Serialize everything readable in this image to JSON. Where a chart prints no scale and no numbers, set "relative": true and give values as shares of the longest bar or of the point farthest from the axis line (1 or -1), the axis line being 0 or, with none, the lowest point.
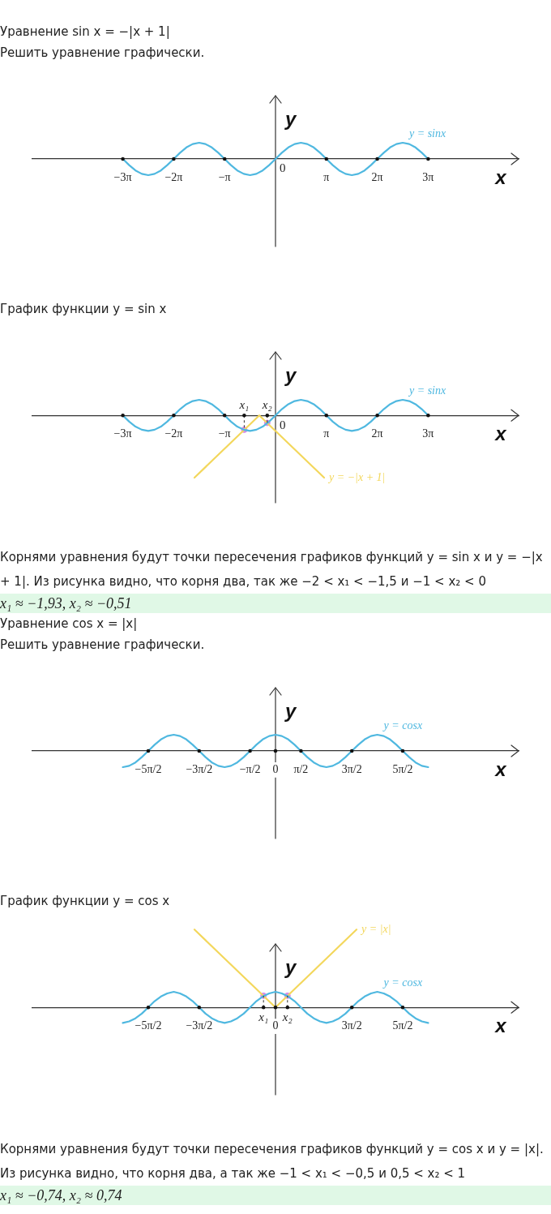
{
  "chart_data": [
    {
      "type": "line",
      "title": "Уравнение sin x = −|x + 1|",
      "subtitle": "Решить уравнение графически.",
      "xlabel": "x",
      "ylabel": "y",
      "relative": true,
      "xlim": [
        -15,
        15
      ],
      "xticks": [
        {
          "value": -9.42,
          "label": "−3π"
        },
        {
          "value": -6.28,
          "label": "−2π"
        },
        {
          "value": -3.14,
          "label": "−π"
        },
        {
          "value": 3.14,
          "label": "π"
        },
        {
          "value": 6.28,
          "label": "2π"
        },
        {
          "value": 9.42,
          "label": "3π"
        }
      ],
      "series": [
        {
          "name": "y = sinx",
          "color": "#4fb8e0",
          "x": [
            -9.42,
            -9.03,
            -8.64,
            -8.25,
            -7.85,
            -7.46,
            -7.07,
            -6.68,
            -6.28,
            -5.89,
            -5.5,
            -5.11,
            -4.71,
            -4.32,
            -3.93,
            -3.53,
            -3.14,
            -2.75,
            -2.36,
            -1.96,
            -1.57,
            -1.18,
            -0.79,
            -0.39,
            0,
            0.39,
            0.79,
            1.18,
            1.57,
            1.96,
            2.36,
            2.75,
            3.14,
            3.53,
            3.93,
            4.32,
            4.71,
            5.11,
            5.5,
            5.89,
            6.28,
            6.68,
            7.07,
            7.46,
            7.85,
            8.25,
            8.64,
            9.03,
            9.42
          ],
          "values": [
            0,
            -0.38,
            -0.71,
            -0.92,
            -1,
            -0.92,
            -0.71,
            -0.38,
            0,
            0.38,
            0.71,
            0.92,
            1,
            0.92,
            0.71,
            0.38,
            0,
            -0.38,
            -0.71,
            -0.92,
            -1,
            -0.92,
            -0.71,
            -0.38,
            0,
            0.38,
            0.71,
            0.92,
            1,
            0.92,
            0.71,
            0.38,
            0,
            -0.38,
            -0.71,
            -0.92,
            -1,
            -0.92,
            -0.71,
            -0.38,
            0,
            0.38,
            0.71,
            0.92,
            1,
            0.92,
            0.71,
            0.38,
            0
          ]
        }
      ],
      "annotations": [
        {
          "text": "0",
          "x": 0,
          "y": 0
        }
      ]
    },
    {
      "type": "line",
      "title": "График функции y = sin x",
      "xlabel": "x",
      "ylabel": "y",
      "relative": true,
      "xlim": [
        -15,
        15
      ],
      "xticks": [
        {
          "value": -9.42,
          "label": "−3π"
        },
        {
          "value": -6.28,
          "label": "−2π"
        },
        {
          "value": -3.14,
          "label": "−π"
        },
        {
          "value": 3.14,
          "label": "π"
        },
        {
          "value": 6.28,
          "label": "2π"
        },
        {
          "value": 9.42,
          "label": "3π"
        }
      ],
      "series": [
        {
          "name": "y = sinx",
          "color": "#4fb8e0",
          "x": [
            -9.42,
            -9.03,
            -8.64,
            -8.25,
            -7.85,
            -7.46,
            -7.07,
            -6.68,
            -6.28,
            -5.89,
            -5.5,
            -5.11,
            -4.71,
            -4.32,
            -3.93,
            -3.53,
            -3.14,
            -2.75,
            -2.36,
            -1.96,
            -1.57,
            -1.18,
            -0.79,
            -0.39,
            0,
            0.39,
            0.79,
            1.18,
            1.57,
            1.96,
            2.36,
            2.75,
            3.14,
            3.53,
            3.93,
            4.32,
            4.71,
            5.11,
            5.5,
            5.89,
            6.28,
            6.68,
            7.07,
            7.46,
            7.85,
            8.25,
            8.64,
            9.03,
            9.42
          ],
          "values": [
            0,
            -0.1,
            -0.18,
            -0.23,
            -0.25,
            -0.23,
            -0.18,
            -0.1,
            0,
            0.1,
            0.18,
            0.23,
            0.25,
            0.23,
            0.18,
            0.1,
            0,
            -0.1,
            -0.18,
            -0.23,
            -0.25,
            -0.23,
            -0.18,
            -0.1,
            0,
            0.1,
            0.18,
            0.23,
            0.25,
            0.23,
            0.18,
            0.1,
            0,
            -0.1,
            -0.18,
            -0.23,
            -0.25,
            -0.23,
            -0.18,
            -0.1,
            0,
            0.1,
            0.18,
            0.23,
            0.25,
            0.23,
            0.18,
            0.1,
            0
          ]
        },
        {
          "name": "y = −|x + 1|",
          "color": "#f3d75c",
          "x": [
            -5,
            -1,
            3
          ],
          "values": [
            -1,
            0,
            -1
          ]
        },
        {
          "type": "scatter",
          "color": "#d98ae8",
          "x": [
            -1.93,
            -0.51
          ],
          "values": [
            -0.23,
            -0.12
          ]
        }
      ],
      "annotations": [
        {
          "text": "0",
          "x": 0,
          "y": 0
        },
        {
          "text": "x₁",
          "x": -1.93,
          "y": -0.23
        },
        {
          "text": "x₂",
          "x": -0.51,
          "y": -0.12
        },
        "Корнями уравнения будут точки пересечения графиков функций y = sin x и y = −|x + 1|. Из рисунка видно, что корня два, так же −2 < x₁ < −1,5 и −1 < x₂ < 0",
        "x₁ ≈ −1,93, x₂ ≈ −0,51"
      ]
    },
    {
      "type": "line",
      "title": "Уравнение cos x = |x|",
      "subtitle": "Решить уравнение графически.",
      "xlabel": "x",
      "ylabel": "y",
      "relative": true,
      "xlim": [
        -15,
        15
      ],
      "xticks": [
        {
          "value": -7.85,
          "label": "−5π/2"
        },
        {
          "value": -4.71,
          "label": "−3π/2"
        },
        {
          "value": -1.57,
          "label": "−π/2"
        },
        0,
        {
          "value": 1.57,
          "label": "π/2"
        },
        {
          "value": 4.71,
          "label": "3π/2"
        },
        {
          "value": 7.85,
          "label": "5π/2"
        }
      ],
      "series": [
        {
          "name": "y = cosx",
          "color": "#4fb8e0",
          "x": [
            -9.42,
            -9.03,
            -8.64,
            -8.25,
            -7.85,
            -7.46,
            -7.07,
            -6.68,
            -6.28,
            -5.89,
            -5.5,
            -5.11,
            -4.71,
            -4.32,
            -3.93,
            -3.53,
            -3.14,
            -2.75,
            -2.36,
            -1.96,
            -1.57,
            -1.18,
            -0.79,
            -0.39,
            0,
            0.39,
            0.79,
            1.18,
            1.57,
            1.96,
            2.36,
            2.75,
            3.14,
            3.53,
            3.93,
            4.32,
            4.71,
            5.11,
            5.5,
            5.89,
            6.28,
            6.68,
            7.07,
            7.46,
            7.85,
            8.25,
            8.64,
            9.03,
            9.42
          ],
          "values": [
            -1,
            -0.92,
            -0.71,
            -0.38,
            0,
            0.38,
            0.71,
            0.92,
            1,
            0.92,
            0.71,
            0.38,
            0,
            -0.38,
            -0.71,
            -0.92,
            -1,
            -0.92,
            -0.71,
            -0.38,
            0,
            0.38,
            0.71,
            0.92,
            1,
            0.92,
            0.71,
            0.38,
            0,
            -0.38,
            -0.71,
            -0.92,
            -1,
            -0.92,
            -0.71,
            -0.38,
            0,
            0.38,
            0.71,
            0.92,
            1,
            0.92,
            0.71,
            0.38,
            0,
            -0.38,
            -0.71,
            -0.92,
            -1
          ]
        }
      ]
    },
    {
      "type": "line",
      "title": "График функции y = cos x",
      "xlabel": "x",
      "ylabel": "y",
      "relative": true,
      "xlim": [
        -15,
        15
      ],
      "xticks": [
        {
          "value": -7.85,
          "label": "−5π/2"
        },
        {
          "value": -4.71,
          "label": "−3π/2"
        },
        0,
        {
          "value": 4.71,
          "label": "3π/2"
        },
        {
          "value": 7.85,
          "label": "5π/2"
        }
      ],
      "series": [
        {
          "name": "y = cosx",
          "color": "#4fb8e0",
          "x": [
            -9.42,
            -9.03,
            -8.64,
            -8.25,
            -7.85,
            -7.46,
            -7.07,
            -6.68,
            -6.28,
            -5.89,
            -5.5,
            -5.11,
            -4.71,
            -4.32,
            -3.93,
            -3.53,
            -3.14,
            -2.75,
            -2.36,
            -1.96,
            -1.57,
            -1.18,
            -0.79,
            -0.39,
            0,
            0.39,
            0.79,
            1.18,
            1.57,
            1.96,
            2.36,
            2.75,
            3.14,
            3.53,
            3.93,
            4.32,
            4.71,
            5.11,
            5.5,
            5.89,
            6.28,
            6.68,
            7.07,
            7.46,
            7.85,
            8.25,
            8.64,
            9.03,
            9.42
          ],
          "values": [
            -0.2,
            -0.18,
            -0.14,
            -0.08,
            0,
            0.08,
            0.14,
            0.18,
            0.2,
            0.18,
            0.14,
            0.08,
            0,
            -0.08,
            -0.14,
            -0.18,
            -0.2,
            -0.18,
            -0.14,
            -0.08,
            0,
            0.08,
            0.14,
            0.18,
            0.2,
            0.18,
            0.14,
            0.08,
            0,
            -0.08,
            -0.14,
            -0.18,
            -0.2,
            -0.18,
            -0.14,
            -0.08,
            0,
            0.08,
            0.14,
            0.18,
            0.2,
            0.18,
            0.14,
            0.08,
            0,
            -0.08,
            -0.14,
            -0.18,
            -0.2
          ]
        },
        {
          "name": "y = |x|",
          "color": "#f3d75c",
          "x": [
            -5,
            0,
            5
          ],
          "values": [
            1,
            0,
            1
          ]
        },
        {
          "type": "scatter",
          "color": "#d98ae8",
          "x": [
            -0.74,
            0.74
          ],
          "values": [
            0.15,
            0.15
          ]
        }
      ],
      "annotations": [
        {
          "text": "x₁",
          "x": -0.74,
          "y": 0.15
        },
        {
          "text": "x₂",
          "x": 0.74,
          "y": 0.15
        },
        "Корнями уравнения будут точки пересечения графиков функций y = cos x и y = |x|. Из рисунка видно, что корня два, а так же −1 < x₁ < −0,5 и 0,5 < x₂ < 1",
        "x₁ ≈ −0,74, x₂ ≈ 0,74"
      ]
    }
  ]
}
